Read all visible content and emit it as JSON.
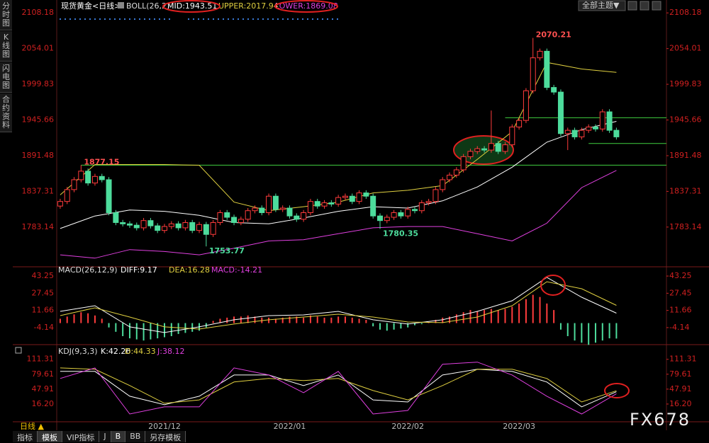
{
  "ui": {
    "sidebar": [
      "分时图",
      "K线图",
      "闪电图",
      "合约资料"
    ],
    "dropdown": "全部主题▼",
    "period": "日线 ▲",
    "tabs": [
      "指标",
      "模板",
      "VIP指标",
      "J",
      "B",
      "BB",
      "另存模板"
    ],
    "watermark": "FX678"
  },
  "chart_data": [
    {
      "type": "candlestick",
      "title": "现货黄金<日线>",
      "indicator": "BOLL(26,2)",
      "up_color": "#ff3c3c",
      "down_color": "#4ddc9c",
      "open": [
        1815,
        1822,
        1840,
        1855,
        1868,
        1850,
        1860,
        1855,
        1805,
        1790,
        1788,
        1786,
        1782,
        1793,
        1785,
        1778,
        1784,
        1788,
        1782,
        1790,
        1778,
        1787,
        1772,
        1790,
        1805,
        1798,
        1790,
        1795,
        1808,
        1812,
        1805,
        1830,
        1810,
        1812,
        1800,
        1795,
        1805,
        1822,
        1815,
        1820,
        1818,
        1828,
        1830,
        1822,
        1835,
        1830,
        1800,
        1793,
        1798,
        1805,
        1800,
        1810,
        1808,
        1820,
        1822,
        1840,
        1855,
        1862,
        1870,
        1890,
        1898,
        1902,
        1900,
        1910,
        1898,
        1908,
        1935,
        1945,
        1990,
        2040,
        2050,
        1995,
        1988,
        1925,
        1930,
        1920,
        1930,
        1935,
        1932,
        1958,
        1930
      ],
      "high": [
        1826,
        1844,
        1859,
        1877.15,
        1872,
        1864,
        1864,
        1859,
        1809,
        1794,
        1792,
        1790,
        1797,
        1797,
        1789,
        1788,
        1792,
        1792,
        1794,
        1794,
        1791,
        1791,
        1794,
        1809,
        1809,
        1802,
        1799,
        1812,
        1816,
        1816,
        1834,
        1834,
        1816,
        1816,
        1804,
        1809,
        1826,
        1826,
        1824,
        1824,
        1832,
        1834,
        1834,
        1839,
        1839,
        1834,
        1804,
        1802,
        1809,
        1809,
        1814,
        1814,
        1824,
        1826,
        1844,
        1859,
        1866,
        1874,
        1894,
        1902,
        1906,
        1906,
        1960,
        1914,
        1912,
        1939,
        1949,
        1994,
        2070.21,
        2054,
        2054,
        1999,
        1992,
        1934,
        1934,
        1934,
        1939,
        1939,
        1962,
        1962,
        1934
      ],
      "low": [
        1811,
        1818,
        1836,
        1851,
        1846,
        1846,
        1851,
        1801,
        1786,
        1784,
        1782,
        1778,
        1778,
        1781,
        1774,
        1774,
        1780,
        1778,
        1778,
        1774,
        1774,
        1753.77,
        1768,
        1786,
        1794,
        1786,
        1786,
        1791,
        1804,
        1801,
        1801,
        1806,
        1806,
        1796,
        1791,
        1791,
        1801,
        1811,
        1811,
        1814,
        1814,
        1824,
        1818,
        1818,
        1826,
        1796,
        1780.35,
        1789,
        1794,
        1796,
        1796,
        1804,
        1804,
        1816,
        1818,
        1836,
        1851,
        1858,
        1866,
        1886,
        1894,
        1896,
        1896,
        1894,
        1894,
        1904,
        1931,
        1941,
        1986,
        2036,
        1991,
        1984,
        1921,
        1900,
        1916,
        1916,
        1926,
        1928,
        1928,
        1926,
        1916
      ],
      "close": [
        1822,
        1840,
        1855,
        1868,
        1850,
        1860,
        1855,
        1805,
        1790,
        1788,
        1786,
        1782,
        1793,
        1785,
        1778,
        1784,
        1788,
        1782,
        1790,
        1778,
        1787,
        1772,
        1790,
        1805,
        1798,
        1790,
        1795,
        1808,
        1812,
        1805,
        1830,
        1810,
        1812,
        1800,
        1795,
        1805,
        1822,
        1815,
        1820,
        1818,
        1828,
        1830,
        1822,
        1835,
        1830,
        1800,
        1793,
        1798,
        1805,
        1800,
        1810,
        1808,
        1820,
        1822,
        1840,
        1855,
        1862,
        1870,
        1890,
        1898,
        1902,
        1900,
        1910,
        1898,
        1908,
        1935,
        1945,
        1990,
        2040,
        2050,
        1995,
        1988,
        1925,
        1930,
        1920,
        1930,
        1935,
        1932,
        1958,
        1930,
        1920
      ],
      "series": [
        {
          "name": "MID:1943.51",
          "color": "#ffffff",
          "x": [
            0,
            5,
            10,
            15,
            20,
            25,
            30,
            35,
            40,
            45,
            50,
            55,
            60,
            65,
            70,
            75,
            80
          ],
          "values": [
            1781,
            1800,
            1809,
            1807,
            1801,
            1790,
            1788,
            1797,
            1807,
            1814,
            1812,
            1823,
            1844,
            1874,
            1912,
            1931,
            1943.51
          ]
        },
        {
          "name": "UPPER:2017.94",
          "color": "#e0d040",
          "x": [
            0,
            5,
            10,
            15,
            20,
            25,
            30,
            35,
            40,
            45,
            50,
            55,
            60,
            65,
            70,
            75,
            80
          ],
          "values": [
            1832,
            1878,
            1878,
            1878,
            1877,
            1821,
            1808,
            1814,
            1821,
            1835,
            1839,
            1846,
            1886,
            1928,
            2033,
            2023,
            2017.94
          ]
        },
        {
          "name": "LOWER:1869.08",
          "color": "#e040e0",
          "x": [
            0,
            5,
            10,
            15,
            20,
            25,
            30,
            35,
            40,
            45,
            50,
            55,
            60,
            65,
            70,
            75,
            80
          ],
          "values": [
            1741,
            1736,
            1749,
            1746,
            1741,
            1751,
            1762,
            1764,
            1773,
            1782,
            1784,
            1784,
            1773,
            1762,
            1789,
            1843,
            1869.08
          ]
        }
      ],
      "annotations": [
        {
          "x": 68,
          "value": 2070.21
        },
        {
          "x": 3,
          "value": 1877.15
        },
        {
          "x": 21,
          "value": 1753.77
        },
        {
          "x": 46,
          "value": 1780.35
        }
      ],
      "levels": [
        {
          "value": 1877.15,
          "from": 3
        },
        {
          "value": 1949,
          "from": 64
        },
        {
          "value": 1910,
          "from": 76
        }
      ],
      "level_color": "#3fcf3f",
      "xlim": [
        -0.5,
        87.2
      ],
      "xticks": [
        {
          "value": 15,
          "label": "2021/12"
        },
        {
          "value": 33,
          "label": "2022/01"
        },
        {
          "value": 50,
          "label": "2022/02"
        },
        {
          "value": 66,
          "label": "2022/03"
        }
      ],
      "ylim": [
        1725,
        2117
      ],
      "yticks": [
        2108.18,
        2054.01,
        1999.83,
        1945.66,
        1891.48,
        1837.31,
        1783.14
      ]
    },
    {
      "type": "macd",
      "title": "MACD(26,12,9)",
      "histogram_label": "MACD:-14.21",
      "histogram_color": "#e040e0",
      "up_color": "#ff3c3c",
      "down_color": "#4ddc9c",
      "histogram": [
        4,
        6,
        8,
        10,
        9,
        7,
        4,
        -4,
        -8,
        -12,
        -14,
        -15,
        -16,
        -15,
        -14,
        -13,
        -12,
        -10,
        -9,
        -8,
        -7,
        -4,
        2,
        4,
        5,
        6,
        6,
        7,
        6,
        5,
        5,
        4,
        5,
        6,
        6,
        5,
        7,
        6,
        5,
        5,
        6,
        6,
        5,
        4,
        3,
        -3,
        -6,
        -7,
        -6,
        -5,
        -4,
        -2,
        -1,
        1,
        3,
        5,
        6,
        8,
        10,
        12,
        11,
        12,
        13,
        12,
        13,
        15,
        18,
        22,
        26,
        24,
        18,
        12,
        -6,
        -12,
        -16,
        -18,
        -20,
        -18,
        -16,
        -14,
        -14.21
      ],
      "series": [
        {
          "name": "DIFF:9.17",
          "color": "#ffffff",
          "x": [
            0,
            5,
            10,
            15,
            20,
            25,
            30,
            35,
            40,
            45,
            50,
            55,
            60,
            65,
            70,
            75,
            80
          ],
          "values": [
            10.8,
            16,
            -3.5,
            -8.7,
            -3.5,
            3,
            6.9,
            7.5,
            10.8,
            3,
            -0.9,
            3,
            10.8,
            20.5,
            42,
            23.8,
            9.17
          ]
        },
        {
          "name": "DEA:16.28",
          "color": "#e0d040",
          "x": [
            0,
            5,
            10,
            15,
            20,
            25,
            30,
            35,
            40,
            45,
            50,
            55,
            60,
            65,
            70,
            75,
            80
          ],
          "values": [
            6.9,
            14,
            5.6,
            -3.5,
            -5.5,
            -0.9,
            3,
            5.6,
            8.2,
            5.6,
            1,
            0.4,
            5.6,
            16,
            38,
            31.6,
            16.28
          ]
        }
      ],
      "xlim": [
        -0.5,
        87.2
      ],
      "ylim": [
        -18.5,
        49.8
      ],
      "yticks": [
        43.25,
        27.45,
        11.66,
        -4.14
      ]
    },
    {
      "type": "line",
      "title": "KDJ(9,3,3)",
      "series": [
        {
          "name": "K:42.26",
          "color": "#ffffff",
          "x": [
            0,
            5,
            10,
            15,
            20,
            25,
            30,
            35,
            40,
            45,
            50,
            55,
            60,
            65,
            70,
            75,
            80
          ],
          "values": [
            85.7,
            85.7,
            32.8,
            14.7,
            32.8,
            78,
            78,
            55.5,
            78,
            25,
            20.7,
            78,
            90.2,
            85.7,
            63,
            10.2,
            42.26
          ]
        },
        {
          "name": "D:44.33",
          "color": "#e0d040",
          "x": [
            0,
            5,
            10,
            15,
            20,
            25,
            30,
            35,
            40,
            45,
            50,
            55,
            60,
            65,
            70,
            75,
            80
          ],
          "values": [
            93,
            90.2,
            55.5,
            17.7,
            25,
            63,
            70.6,
            66,
            70.6,
            44.9,
            25,
            55.5,
            90.2,
            90.2,
            70.6,
            20.7,
            44.33
          ]
        },
        {
          "name": "J:38.12",
          "color": "#e040e0",
          "x": [
            0,
            5,
            10,
            15,
            20,
            25,
            30,
            35,
            40,
            45,
            50,
            55,
            60,
            65,
            70,
            75,
            80
          ],
          "values": [
            70.6,
            93,
            -5,
            10.2,
            10.2,
            93,
            78,
            40.4,
            85.7,
            -5,
            2.6,
            100.8,
            105.3,
            78,
            32.8,
            -5,
            38.12
          ]
        }
      ],
      "xlim": [
        -0.5,
        87.2
      ],
      "ylim": [
        -20,
        138
      ],
      "yticks": [
        111.31,
        79.61,
        47.91,
        {
          "value": 16.2,
          "label": "16.20"
        }
      ]
    }
  ]
}
